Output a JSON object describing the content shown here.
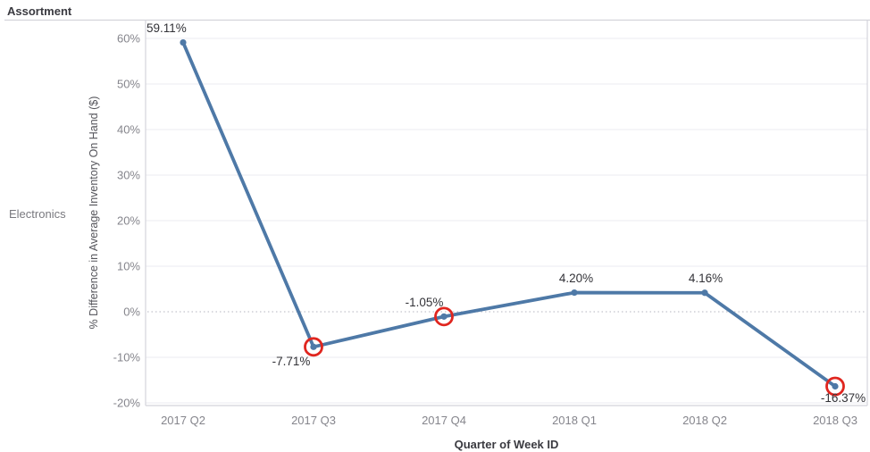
{
  "header": {
    "title": "Assortment"
  },
  "sidebar": {
    "row_label": "Electronics"
  },
  "axes": {
    "y_title": "% Difference in Average Inventory On Hand ($)",
    "x_title": "Quarter of Week ID",
    "y_tick_labels": [
      "60%",
      "50%",
      "40%",
      "30%",
      "20%",
      "10%",
      "0%",
      "-10%",
      "-20%"
    ]
  },
  "chart_data": {
    "type": "line",
    "categories": [
      "2017 Q2",
      "2017 Q3",
      "2017 Q4",
      "2018 Q1",
      "2018 Q2",
      "2018 Q3"
    ],
    "values": [
      59.11,
      -7.71,
      -1.05,
      4.2,
      4.16,
      -16.37
    ],
    "point_labels": [
      "59.11%",
      "-7.71%",
      "-1.05%",
      "4.20%",
      "4.16%",
      "-16.37%"
    ],
    "highlighted_indices": [
      1,
      2,
      5
    ],
    "highlighted_categories": [
      "2017 Q3",
      "2017 Q4",
      "2018 Q3"
    ],
    "xlabel": "Quarter of Week ID",
    "ylabel": "% Difference in Average Inventory On Hand ($)",
    "ylim": [
      -20,
      60
    ],
    "y_ticks": [
      60,
      50,
      40,
      30,
      20,
      10,
      0,
      -10,
      -20
    ],
    "grid": true,
    "zero_line": "dotted",
    "legend": "none",
    "line_color": "#4e79a7",
    "highlight_color": "#e0261f"
  },
  "colors": {
    "grid": "#ebebf0",
    "zero_line": "#c4c4cc",
    "border": "#d4d4db",
    "tick_text": "#85858c",
    "data_label": "#323237",
    "accent_blue": "#4e79a7",
    "accent_red": "#e0261f"
  }
}
